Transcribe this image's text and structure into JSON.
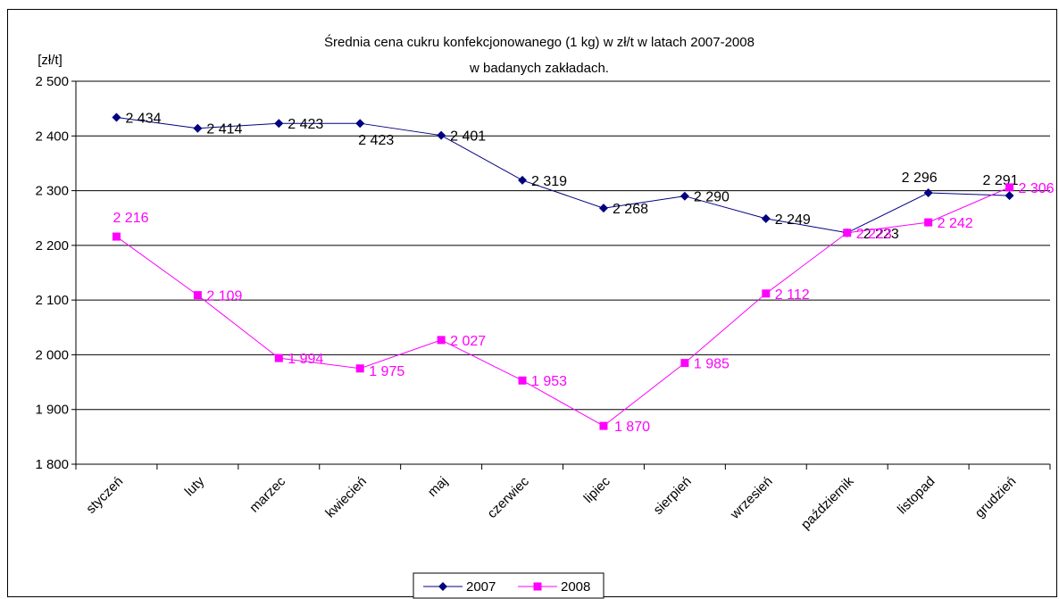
{
  "chart_data": {
    "type": "line",
    "title": "Średnia cena cukru konfekcjonowanego (1 kg) w zł/t w latach 2007-2008",
    "subtitle": "w badanych zakładach.",
    "ylabel": "[zł/t]",
    "xlabel": "",
    "ylim": [
      1800,
      2500
    ],
    "ytick_step": 100,
    "yticks": [
      "1 800",
      "1 900",
      "2 000",
      "2 100",
      "2 200",
      "2 300",
      "2 400",
      "2 500"
    ],
    "grid": true,
    "legend_position": "bottom-center",
    "categories": [
      "styczeń",
      "luty",
      "marzec",
      "kwiecień",
      "maj",
      "czerwiec",
      "lipiec",
      "sierpień",
      "wrzesień",
      "październik",
      "listopad",
      "grudzień"
    ],
    "series": [
      {
        "name": "2007",
        "color": "#000080",
        "marker": "diamond",
        "label_color": "#000000",
        "values": [
          2434,
          2414,
          2423,
          2423,
          2401,
          2319,
          2268,
          2290,
          2249,
          2223,
          2296,
          2291
        ],
        "labels": [
          "2 434",
          "2 414",
          "2 423",
          "2 423",
          "2 401",
          "2 319",
          "2 268",
          "2 290",
          "2 249",
          "2 223",
          "2 296",
          "2 291"
        ]
      },
      {
        "name": "2008",
        "color": "#ff00ff",
        "marker": "square",
        "label_color": "#ff00ff",
        "values": [
          2216,
          2109,
          1994,
          1975,
          2027,
          1953,
          1870,
          1985,
          2112,
          2223,
          2242,
          2306
        ],
        "labels": [
          "2 216",
          "2 109",
          "1 994",
          "1 975",
          "2 027",
          "1 953",
          "1 870",
          "1 985",
          "2 112",
          "2 223",
          "2 242",
          "2 306"
        ]
      }
    ]
  }
}
